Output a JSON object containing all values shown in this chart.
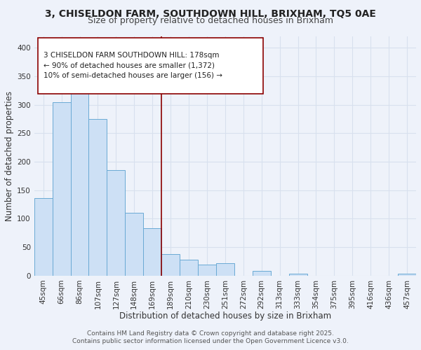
{
  "title1": "3, CHISELDON FARM, SOUTHDOWN HILL, BRIXHAM, TQ5 0AE",
  "title2": "Size of property relative to detached houses in Brixham",
  "xlabel": "Distribution of detached houses by size in Brixham",
  "ylabel": "Number of detached properties",
  "categories": [
    "45sqm",
    "66sqm",
    "86sqm",
    "107sqm",
    "127sqm",
    "148sqm",
    "169sqm",
    "189sqm",
    "210sqm",
    "230sqm",
    "251sqm",
    "272sqm",
    "292sqm",
    "313sqm",
    "333sqm",
    "354sqm",
    "375sqm",
    "395sqm",
    "416sqm",
    "436sqm",
    "457sqm"
  ],
  "values": [
    136,
    305,
    325,
    275,
    185,
    110,
    84,
    38,
    28,
    19,
    22,
    0,
    9,
    0,
    4,
    0,
    0,
    0,
    0,
    0,
    4
  ],
  "bar_color": "#cde0f5",
  "bar_edge_color": "#6aaad4",
  "reference_line_color": "#8b0000",
  "ref_line_index": 6.5,
  "annotation_line1": "3 CHISELDON FARM SOUTHDOWN HILL: 178sqm",
  "annotation_line2": "← 90% of detached houses are smaller (1,372)",
  "annotation_line3": "10% of semi-detached houses are larger (156) →",
  "annotation_box_facecolor": "#ffffff",
  "annotation_box_edgecolor": "#8b0000",
  "ylim_max": 420,
  "yticks": [
    0,
    50,
    100,
    150,
    200,
    250,
    300,
    350,
    400
  ],
  "footer1": "Contains HM Land Registry data © Crown copyright and database right 2025.",
  "footer2": "Contains public sector information licensed under the Open Government Licence v3.0.",
  "bg_color": "#eef2fa",
  "grid_color": "#d8e0ee",
  "title1_fontsize": 10,
  "title2_fontsize": 9,
  "xlabel_fontsize": 8.5,
  "ylabel_fontsize": 8.5,
  "tick_fontsize": 7.5,
  "annot_fontsize": 7.5,
  "footer_fontsize": 6.5
}
